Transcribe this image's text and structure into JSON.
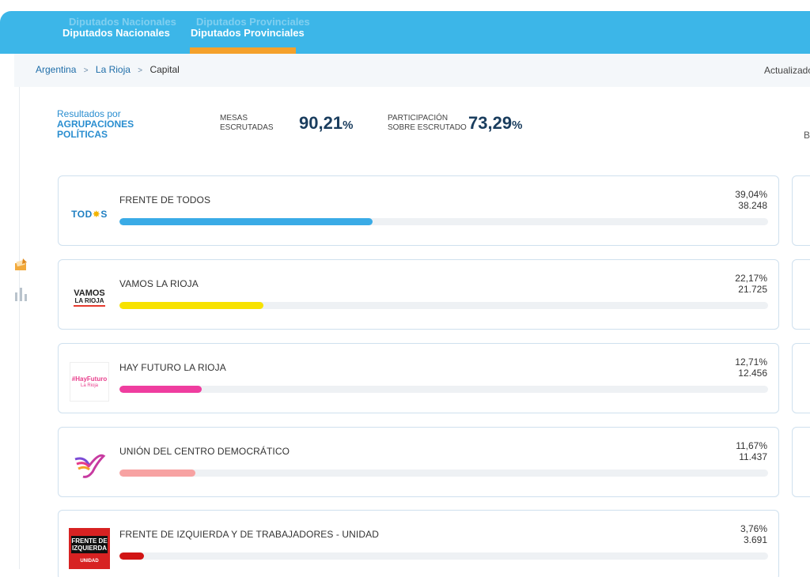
{
  "nav": {
    "tabs": [
      {
        "label": "Diputados Nacionales",
        "active": false
      },
      {
        "label": "Diputados Provinciales",
        "active": true
      }
    ],
    "accent": "#3cb6e8",
    "active_underline": "#f4a12b"
  },
  "breadcrumb": {
    "items": [
      "Argentina",
      "La Rioja"
    ],
    "current": "Capital",
    "separator": ">"
  },
  "header_right": {
    "updated_text": "Actualizado"
  },
  "summary": {
    "results_label_line1": "Resultados por",
    "results_label_line2": "AGRUPACIONES",
    "results_label_line3": "POLÍTICAS",
    "mesas_label_line1": "MESAS",
    "mesas_label_line2": "ESCRUTADAS",
    "mesas_value": "90,21",
    "participacion_label_line1": "PARTICIPACIÓN",
    "participacion_label_line2": "SOBRE ESCRUTADO",
    "participacion_value": "73,29",
    "percent_sign": "%",
    "side_letter": "B"
  },
  "parties": [
    {
      "name": "FRENTE DE TODOS",
      "percent": "39,04%",
      "votes": "38.248",
      "share": 39.04,
      "color": "#3aabe6",
      "logo": "todos-logo"
    },
    {
      "name": "VAMOS LA RIOJA",
      "percent": "22,17%",
      "votes": "21.725",
      "share": 22.17,
      "color": "#f7e200",
      "logo": "vamos-logo"
    },
    {
      "name": "HAY FUTURO LA RIOJA",
      "percent": "12,71%",
      "votes": "12.456",
      "share": 12.71,
      "color": "#ef3d9f",
      "logo": "hayfuturo-logo"
    },
    {
      "name": "UNIÓN DEL CENTRO DEMOCRÁTICO",
      "percent": "11,67%",
      "votes": "11.437",
      "share": 11.67,
      "color": "#f7a2a2",
      "logo": "ucede-logo"
    },
    {
      "name": "FRENTE DE IZQUIERDA Y DE TRABAJADORES - UNIDAD",
      "percent": "3,76%",
      "votes": "3.691",
      "share": 3.76,
      "color": "#d11414",
      "logo": "fit-logo"
    }
  ],
  "logos": {
    "todos_text_a": "TOD",
    "todos_text_b": "S",
    "vamos_l1": "VAMOS",
    "vamos_l2": "LA RIOJA",
    "hay_l1": "#HayFuturo",
    "hay_l2": "La Rioja",
    "fit_l1": "FRENTE DE",
    "fit_l2": "IZQUIERDA",
    "fit_l3": "UNIDAD"
  }
}
